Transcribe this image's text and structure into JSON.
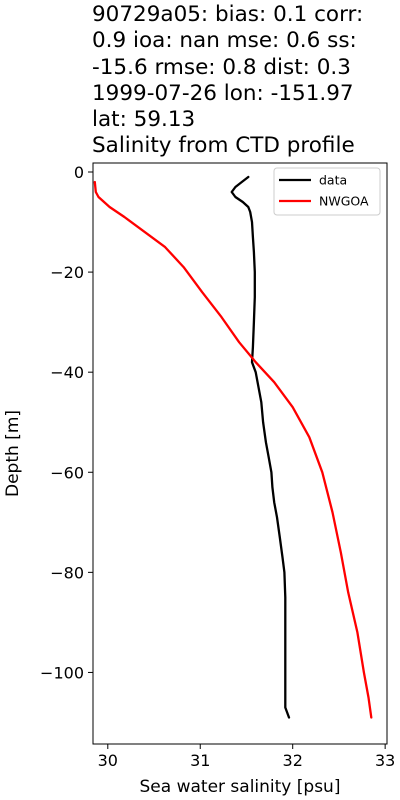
{
  "chart_data": {
    "type": "line",
    "title_lines": [
      "90729a05: bias: 0.1  corr:",
      "0.9  ioa: nan  mse: 0.6  ss:",
      "-15.6  rmse: 0.8  dist: 0.3",
      "1999-07-26 lon: -151.97",
      "lat: 59.13",
      "Salinity from CTD profile"
    ],
    "xlabel": "Sea water salinity [psu]",
    "ylabel": "Depth [m]",
    "xlim": [
      29.84,
      33.02
    ],
    "ylim": [
      -114.3,
      1.8
    ],
    "xticks": [
      30,
      31,
      32,
      33
    ],
    "yticks": [
      0,
      -20,
      -40,
      -60,
      -80,
      -100
    ],
    "legend_position": "top-right",
    "series": [
      {
        "name": "data",
        "color": "#000000",
        "points": [
          [
            31.52,
            -1.0
          ],
          [
            31.45,
            -2.0
          ],
          [
            31.38,
            -3.0
          ],
          [
            31.34,
            -4.0
          ],
          [
            31.38,
            -5.0
          ],
          [
            31.46,
            -6.0
          ],
          [
            31.52,
            -7.0
          ],
          [
            31.54,
            -8.0
          ],
          [
            31.56,
            -10.0
          ],
          [
            31.57,
            -13.0
          ],
          [
            31.58,
            -16.0
          ],
          [
            31.59,
            -20.0
          ],
          [
            31.59,
            -25.0
          ],
          [
            31.58,
            -30.0
          ],
          [
            31.57,
            -35.0
          ],
          [
            31.56,
            -38.0
          ],
          [
            31.6,
            -40.0
          ],
          [
            31.63,
            -43.0
          ],
          [
            31.66,
            -46.0
          ],
          [
            31.68,
            -50.0
          ],
          [
            31.71,
            -54.0
          ],
          [
            31.74,
            -57.0
          ],
          [
            31.77,
            -60.0
          ],
          [
            31.78,
            -63.0
          ],
          [
            31.8,
            -66.0
          ],
          [
            31.83,
            -69.0
          ],
          [
            31.86,
            -73.0
          ],
          [
            31.89,
            -77.0
          ],
          [
            31.91,
            -80.0
          ],
          [
            31.92,
            -85.0
          ],
          [
            31.92,
            -90.0
          ],
          [
            31.92,
            -95.0
          ],
          [
            31.92,
            -100.0
          ],
          [
            31.92,
            -104.0
          ],
          [
            31.92,
            -107.0
          ],
          [
            31.96,
            -109.0
          ]
        ]
      },
      {
        "name": "NWGOA",
        "color": "#ff0000",
        "points": [
          [
            29.86,
            -2.0
          ],
          [
            29.87,
            -4.0
          ],
          [
            29.9,
            -5.0
          ],
          [
            30.02,
            -7.0
          ],
          [
            30.18,
            -9.0
          ],
          [
            30.4,
            -12.0
          ],
          [
            30.62,
            -15.0
          ],
          [
            30.82,
            -19.0
          ],
          [
            31.02,
            -24.0
          ],
          [
            31.23,
            -29.0
          ],
          [
            31.42,
            -34.0
          ],
          [
            31.6,
            -38.0
          ],
          [
            31.8,
            -42.0
          ],
          [
            32.0,
            -47.0
          ],
          [
            32.18,
            -53.0
          ],
          [
            32.32,
            -60.0
          ],
          [
            32.43,
            -68.0
          ],
          [
            32.52,
            -76.0
          ],
          [
            32.6,
            -84.0
          ],
          [
            32.7,
            -92.0
          ],
          [
            32.77,
            -100.0
          ],
          [
            32.82,
            -105.0
          ],
          [
            32.85,
            -109.0
          ]
        ]
      }
    ]
  }
}
